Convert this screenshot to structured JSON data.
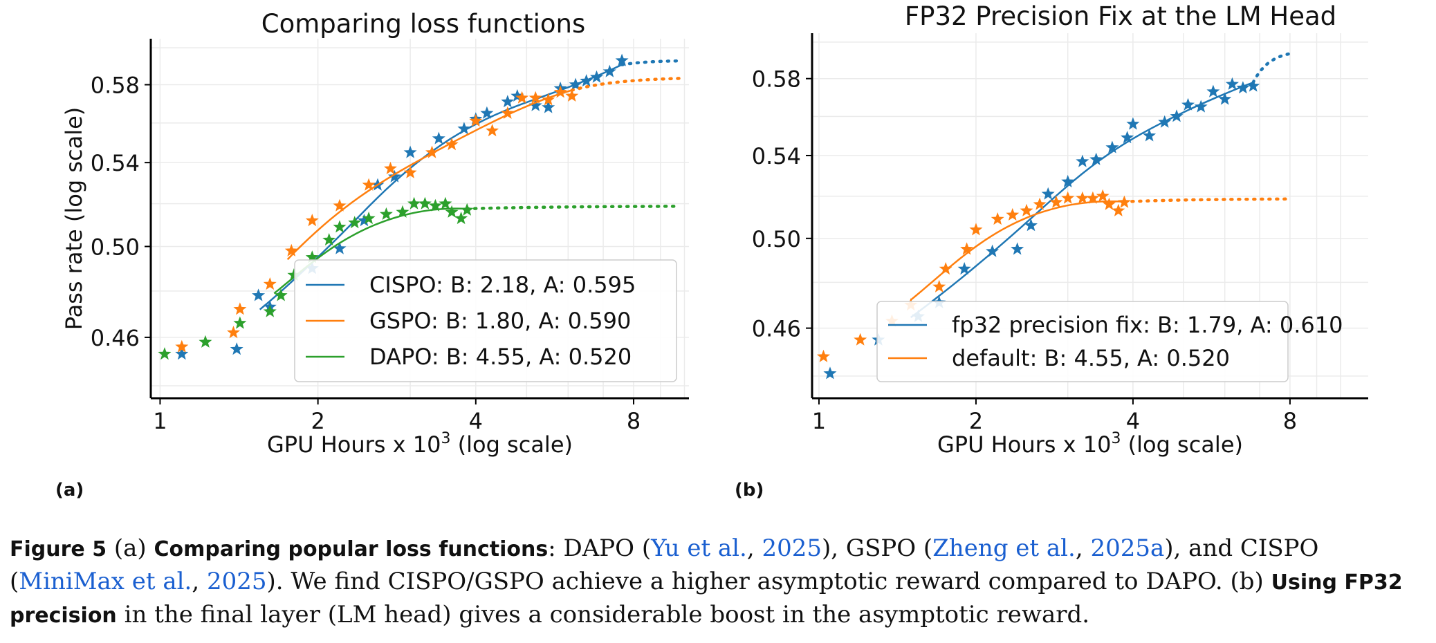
{
  "chart_data": [
    {
      "type": "scatter",
      "title": "Comparing loss functions",
      "xlabel": "GPU Hours x 10",
      "xlabel_sup": "3",
      "xlabel_suffix": " (log scale)",
      "ylabel": "Pass rate (log scale)",
      "xscale": "log",
      "yscale": "log",
      "xlim": [
        0.96,
        10.2
      ],
      "ylim": [
        0.435,
        0.605
      ],
      "xticks": [
        1,
        2,
        4,
        8
      ],
      "xtick_labels": [
        "1",
        "2",
        "4",
        "8"
      ],
      "yticks": [
        0.46,
        0.5,
        0.54,
        0.58
      ],
      "ytick_labels": [
        "0.46",
        "0.50",
        "0.54",
        "0.58"
      ],
      "grid": true,
      "legend_position": "lower-right",
      "series": [
        {
          "name": "CISPO",
          "legend": "CISPO: B: 2.18, A: 0.595",
          "color": "#1f77b4",
          "B": 2.18,
          "A": 0.595,
          "fit_range": [
            1.55,
            7.6
          ],
          "extrap_range": [
            7.6,
            9.8
          ],
          "points": [
            [
              1.1,
              0.453
            ],
            [
              1.4,
              0.455
            ],
            [
              1.54,
              0.478
            ],
            [
              1.62,
              0.473
            ],
            [
              1.95,
              0.49
            ],
            [
              2.2,
              0.499
            ],
            [
              2.45,
              0.512
            ],
            [
              2.6,
              0.529
            ],
            [
              2.8,
              0.533
            ],
            [
              3.0,
              0.545
            ],
            [
              3.4,
              0.552
            ],
            [
              3.8,
              0.557
            ],
            [
              4.0,
              0.562
            ],
            [
              4.2,
              0.565
            ],
            [
              4.6,
              0.571
            ],
            [
              4.8,
              0.574
            ],
            [
              5.2,
              0.569
            ],
            [
              5.5,
              0.568
            ],
            [
              5.8,
              0.578
            ],
            [
              6.2,
              0.58
            ],
            [
              6.5,
              0.582
            ],
            [
              6.8,
              0.584
            ],
            [
              7.2,
              0.587
            ],
            [
              7.6,
              0.593
            ]
          ]
        },
        {
          "name": "GSPO",
          "legend": "GSPO: B: 1.80, A: 0.590",
          "color": "#ff7f0e",
          "B": 1.8,
          "A": 0.59,
          "fit_range": [
            1.75,
            6.1
          ],
          "extrap_range": [
            6.1,
            9.8
          ],
          "points": [
            [
              1.1,
              0.456
            ],
            [
              1.38,
              0.462
            ],
            [
              1.42,
              0.472
            ],
            [
              1.62,
              0.483
            ],
            [
              1.78,
              0.498
            ],
            [
              1.95,
              0.512
            ],
            [
              2.2,
              0.519
            ],
            [
              2.5,
              0.529
            ],
            [
              2.75,
              0.537
            ],
            [
              3.0,
              0.535
            ],
            [
              3.3,
              0.545
            ],
            [
              3.6,
              0.549
            ],
            [
              4.0,
              0.561
            ],
            [
              4.3,
              0.556
            ],
            [
              4.6,
              0.565
            ],
            [
              4.9,
              0.573
            ],
            [
              5.2,
              0.573
            ],
            [
              5.5,
              0.572
            ],
            [
              5.8,
              0.576
            ],
            [
              6.1,
              0.574
            ]
          ]
        },
        {
          "name": "DAPO",
          "legend": "DAPO: B: 4.55, A: 0.520",
          "color": "#2ca02c",
          "B": 4.55,
          "A": 0.52,
          "fit_range": [
            1.65,
            3.85
          ],
          "extrap_range": [
            3.85,
            9.8
          ],
          "points": [
            [
              1.02,
              0.453
            ],
            [
              1.22,
              0.458
            ],
            [
              1.42,
              0.466
            ],
            [
              1.62,
              0.471
            ],
            [
              1.7,
              0.478
            ],
            [
              1.8,
              0.487
            ],
            [
              1.95,
              0.495
            ],
            [
              2.1,
              0.503
            ],
            [
              2.2,
              0.509
            ],
            [
              2.35,
              0.511
            ],
            [
              2.5,
              0.513
            ],
            [
              2.7,
              0.515
            ],
            [
              2.9,
              0.516
            ],
            [
              3.05,
              0.52
            ],
            [
              3.2,
              0.52
            ],
            [
              3.35,
              0.519
            ],
            [
              3.5,
              0.52
            ],
            [
              3.6,
              0.516
            ],
            [
              3.75,
              0.513
            ],
            [
              3.85,
              0.517
            ]
          ]
        }
      ]
    },
    {
      "type": "scatter",
      "title": "FP32 Precision Fix at the LM Head",
      "xlabel": "GPU Hours x 10",
      "xlabel_sup": "3",
      "xlabel_suffix": " (log scale)",
      "xscale": "log",
      "yscale": "log",
      "xlim": [
        0.97,
        11.3
      ],
      "ylim": [
        0.431,
        0.605
      ],
      "xticks": [
        1,
        2,
        4,
        8
      ],
      "xtick_labels": [
        "1",
        "2",
        "4",
        "8"
      ],
      "yticks": [
        0.46,
        0.5,
        0.54,
        0.58
      ],
      "ytick_labels": [
        "0.46",
        "0.50",
        "0.54",
        "0.58"
      ],
      "grid": true,
      "legend_position": "lower-right",
      "series": [
        {
          "name": "fp32 precision fix",
          "legend": "fp32 precision fix: B: 1.79, A: 0.610",
          "color": "#1f77b4",
          "B": 1.79,
          "A": 0.61,
          "fit_range": [
            1.5,
            6.8
          ],
          "extrap_range": [
            6.8,
            8.0
          ],
          "points": [
            [
              1.05,
              0.441
            ],
            [
              1.3,
              0.455
            ],
            [
              1.55,
              0.465
            ],
            [
              1.7,
              0.471
            ],
            [
              1.9,
              0.486
            ],
            [
              2.15,
              0.494
            ],
            [
              2.4,
              0.495
            ],
            [
              2.55,
              0.506
            ],
            [
              2.75,
              0.521
            ],
            [
              3.0,
              0.527
            ],
            [
              3.2,
              0.537
            ],
            [
              3.4,
              0.538
            ],
            [
              3.65,
              0.544
            ],
            [
              3.9,
              0.549
            ],
            [
              4.0,
              0.556
            ],
            [
              4.3,
              0.55
            ],
            [
              4.6,
              0.557
            ],
            [
              4.85,
              0.56
            ],
            [
              5.1,
              0.566
            ],
            [
              5.4,
              0.565
            ],
            [
              5.7,
              0.573
            ],
            [
              6.0,
              0.569
            ],
            [
              6.2,
              0.577
            ],
            [
              6.5,
              0.575
            ],
            [
              6.8,
              0.576
            ]
          ]
        },
        {
          "name": "default",
          "legend": "default: B: 4.55, A: 0.520",
          "color": "#ff7f0e",
          "B": 4.55,
          "A": 0.52,
          "fit_range": [
            1.5,
            3.85
          ],
          "extrap_range": [
            3.85,
            8.0
          ],
          "points": [
            [
              1.02,
              0.448
            ],
            [
              1.2,
              0.455
            ],
            [
              1.38,
              0.463
            ],
            [
              1.5,
              0.47
            ],
            [
              1.7,
              0.478
            ],
            [
              1.75,
              0.486
            ],
            [
              1.92,
              0.495
            ],
            [
              2.0,
              0.504
            ],
            [
              2.2,
              0.509
            ],
            [
              2.35,
              0.511
            ],
            [
              2.5,
              0.513
            ],
            [
              2.65,
              0.516
            ],
            [
              2.85,
              0.517
            ],
            [
              3.0,
              0.519
            ],
            [
              3.2,
              0.519
            ],
            [
              3.35,
              0.519
            ],
            [
              3.5,
              0.52
            ],
            [
              3.6,
              0.516
            ],
            [
              3.75,
              0.513
            ],
            [
              3.85,
              0.517
            ]
          ]
        }
      ]
    }
  ],
  "subfigure_labels": {
    "a": "(a)",
    "b": "(b)"
  },
  "caption": {
    "figure": "Figure 5",
    "part_a": "(a)",
    "part_a_heading": "Comparing popular loss functions",
    "colon": ":  DAPO (",
    "cite1_a": "Yu et al.",
    "comma1": ", ",
    "cite1_b": "2025",
    "mid1": "), GSPO (",
    "cite2_a": "Zheng et al.",
    "comma2": ", ",
    "cite2_b": "2025a",
    "mid2": "), and CISPO (",
    "cite3_a": "MiniMax et al.",
    "comma3": ", ",
    "cite3_b": "2025",
    "sentence": "). We find CISPO/GSPO achieve a higher asymptotic reward compared to DAPO. (b) ",
    "part_b_heading": "Using FP32 precision",
    "end": " in the final layer (LM head) gives a considerable boost in the asymptotic reward."
  }
}
